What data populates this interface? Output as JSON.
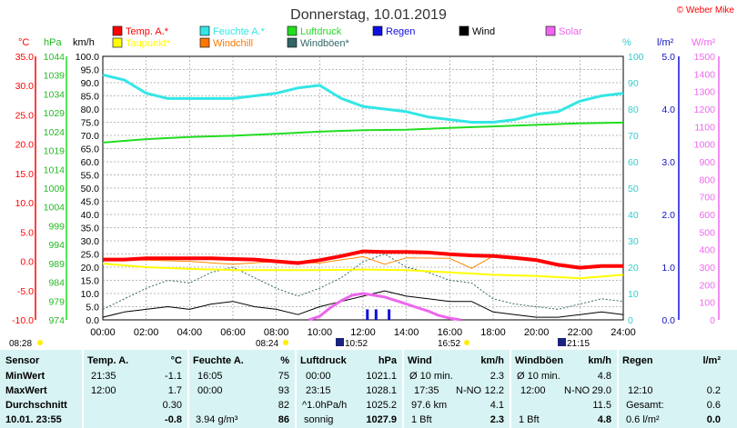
{
  "title": "Donnerstag, 10.01.2019",
  "copyright": "© Weber Mike",
  "legend": [
    {
      "name": "Temp. A.*",
      "color": "#ff0000"
    },
    {
      "name": "Feuchte A.*",
      "color": "#33e6e6"
    },
    {
      "name": "Luftdruck",
      "color": "#22dd22"
    },
    {
      "name": "Regen",
      "color": "#1010e0"
    },
    {
      "name": "Wind",
      "color": "#000000"
    },
    {
      "name": "Solar",
      "color": "#ee66ee"
    },
    {
      "name": "Taupunkt*",
      "color": "#ffff00"
    },
    {
      "name": "Windchill",
      "color": "#ff7700"
    },
    {
      "name": "Windböen*",
      "color": "#336666"
    }
  ],
  "axis_units": {
    "temp": "°C",
    "pressure": "hPa",
    "wind": "km/h",
    "humidity": "%",
    "rain": "l/m²",
    "solar": "W/m²"
  },
  "axis_ticks": {
    "temp": [
      "35.0",
      "30.0",
      "25.0",
      "20.0",
      "15.0",
      "10.0",
      "5.0",
      "0.0",
      "-5.0",
      "-10.0"
    ],
    "pressure": [
      "1044",
      "1039",
      "1034",
      "1029",
      "1024",
      "1019",
      "1014",
      "1009",
      "1004",
      "999",
      "994",
      "989",
      "984",
      "979",
      "974"
    ],
    "wind": [
      "100.0",
      "95.0",
      "90.0",
      "85.0",
      "80.0",
      "75.0",
      "70.0",
      "65.0",
      "60.0",
      "55.0",
      "50.0",
      "45.0",
      "40.0",
      "35.0",
      "30.0",
      "25.0",
      "20.0",
      "15.0",
      "10.0",
      "5.0",
      "0.0"
    ],
    "humidity": [
      "100",
      "90",
      "80",
      "70",
      "60",
      "50",
      "40",
      "30",
      "20",
      "10",
      "0"
    ],
    "rain": [
      "5.0",
      "4.0",
      "3.0",
      "2.0",
      "1.0",
      "0.0"
    ],
    "solar": [
      "1500",
      "1400",
      "1300",
      "1200",
      "1100",
      "1000",
      "900",
      "800",
      "700",
      "600",
      "500",
      "400",
      "300",
      "200",
      "100",
      "0"
    ]
  },
  "time_ticks": [
    "00:00",
    "02:00",
    "04:00",
    "06:00",
    "08:00",
    "10:00",
    "12:00",
    "14:00",
    "16:00",
    "18:00",
    "20:00",
    "22:00",
    "24:00"
  ],
  "events": {
    "sunrise1": "08:28",
    "sunrise2": "08:24",
    "moonrise": "10:52",
    "sunset": "16:52",
    "moonset": "21:15"
  },
  "chart_data": {
    "type": "line",
    "title": "Donnerstag, 10.01.2019",
    "x_unit": "hour",
    "x_range": [
      0,
      24
    ],
    "series": [
      {
        "name": "Temp. A.*",
        "axis": "temp",
        "ylim": [
          -10,
          35
        ],
        "x": [
          0,
          1,
          2,
          3,
          4,
          5,
          6,
          7,
          8,
          9,
          10,
          11,
          12,
          13,
          14,
          15,
          16,
          17,
          18,
          19,
          20,
          21,
          22,
          23,
          24
        ],
        "values": [
          0.3,
          0.3,
          0.5,
          0.5,
          0.5,
          0.5,
          0.4,
          0.3,
          0.0,
          -0.3,
          0.2,
          0.9,
          1.7,
          1.6,
          1.6,
          1.5,
          1.2,
          1.0,
          0.9,
          0.6,
          0.2,
          -0.6,
          -1.1,
          -0.8,
          -0.8
        ]
      },
      {
        "name": "Feuchte A.*",
        "axis": "humidity",
        "ylim": [
          0,
          100
        ],
        "x": [
          0,
          1,
          2,
          3,
          4,
          5,
          6,
          7,
          8,
          9,
          10,
          11,
          12,
          13,
          14,
          15,
          16,
          17,
          18,
          19,
          20,
          21,
          22,
          23,
          24
        ],
        "values": [
          93,
          91,
          86,
          84,
          84,
          84,
          84,
          85,
          86,
          88,
          89,
          84,
          81,
          80,
          79,
          77,
          76,
          75,
          75,
          76,
          78,
          79,
          83,
          85,
          86
        ]
      },
      {
        "name": "Luftdruck",
        "axis": "pressure",
        "ylim": [
          974,
          1044
        ],
        "x": [
          0,
          2,
          4,
          6,
          8,
          10,
          12,
          14,
          16,
          18,
          20,
          22,
          24
        ],
        "values": [
          1021.1,
          1022.0,
          1022.6,
          1022.9,
          1023.4,
          1024.0,
          1024.4,
          1024.5,
          1025.0,
          1025.4,
          1025.8,
          1026.2,
          1026.4
        ]
      },
      {
        "name": "Taupunkt*",
        "axis": "temp",
        "ylim": [
          -10,
          35
        ],
        "x": [
          0,
          2,
          4,
          6,
          8,
          10,
          12,
          14,
          16,
          18,
          20,
          22,
          24
        ],
        "values": [
          -0.4,
          -1.0,
          -1.3,
          -1.5,
          -1.5,
          -1.5,
          -1.4,
          -1.5,
          -1.9,
          -2.3,
          -2.5,
          -2.9,
          -2.3
        ]
      },
      {
        "name": "Windchill",
        "axis": "temp",
        "ylim": [
          -10,
          35
        ],
        "x": [
          0,
          2,
          4,
          6,
          8,
          10,
          12,
          13,
          14,
          16,
          17,
          18,
          20,
          22,
          24
        ],
        "values": [
          0.3,
          0.2,
          0.0,
          -0.5,
          0.0,
          -0.3,
          0.8,
          -0.5,
          0.6,
          0.5,
          -1.2,
          0.9,
          0.2,
          -1.1,
          -0.8
        ]
      },
      {
        "name": "Wind",
        "axis": "wind",
        "ylim": [
          0,
          100
        ],
        "x": [
          0,
          1,
          2,
          3,
          4,
          5,
          6,
          7,
          8,
          9,
          10,
          11,
          12,
          13,
          14,
          15,
          16,
          17,
          18,
          19,
          20,
          21,
          22,
          23,
          24
        ],
        "values": [
          1,
          3,
          4,
          5,
          4,
          6,
          7,
          5,
          4,
          2,
          5,
          7,
          9,
          11,
          9,
          8,
          7,
          7,
          3,
          2,
          1,
          1,
          2,
          3,
          2
        ]
      },
      {
        "name": "Windböen*",
        "axis": "wind",
        "ylim": [
          0,
          100
        ],
        "x": [
          0,
          1,
          2,
          3,
          4,
          5,
          6,
          7,
          8,
          9,
          10,
          11,
          12,
          13,
          14,
          15,
          16,
          17,
          18,
          19,
          20,
          21,
          22,
          23,
          24
        ],
        "values": [
          4,
          8,
          12,
          15,
          14,
          18,
          20,
          16,
          12,
          9,
          12,
          16,
          22,
          25,
          20,
          18,
          15,
          14,
          8,
          6,
          5,
          4,
          6,
          8,
          7
        ]
      },
      {
        "name": "Solar",
        "axis": "solar",
        "ylim": [
          0,
          1500
        ],
        "x": [
          9.5,
          10,
          10.5,
          11,
          11.5,
          12,
          12.5,
          13,
          13.5,
          14,
          14.5,
          15,
          15.5,
          16,
          16.5
        ],
        "values": [
          0,
          20,
          70,
          110,
          140,
          150,
          140,
          130,
          110,
          90,
          70,
          50,
          25,
          10,
          0
        ]
      },
      {
        "name": "Regen",
        "axis": "rain",
        "ylim": [
          0,
          5
        ],
        "x": [
          12.2,
          12.6,
          13.2
        ],
        "values": [
          0.2,
          0.2,
          0.2
        ]
      }
    ]
  },
  "table": {
    "headers": {
      "sensor": "Sensor",
      "temp": "Temp. A.",
      "temp_unit": "°C",
      "hum": "Feuchte A.",
      "hum_unit": "%",
      "press": "Luftdruck",
      "press_unit": "hPa",
      "wind": "Wind",
      "wind_unit": "km/h",
      "gust": "Windböen",
      "gust_unit": "km/h",
      "rain": "Regen",
      "rain_unit": "l/m²"
    },
    "labels": {
      "min": "MinWert",
      "max": "MaxWert",
      "avg": "Durchschnitt",
      "cur": "10.01. 23:55"
    },
    "min": {
      "temp_time": "21:35",
      "temp": "-1.1",
      "hum_time": "16:05",
      "hum": "75",
      "press_time": "00:00",
      "press": "1021.1",
      "wind_label": "Ø 10 min.",
      "wind": "2.3",
      "gust_label": "Ø 10 min.",
      "gust": "4.8"
    },
    "max": {
      "temp_time": "12:00",
      "temp": "1.7",
      "hum_time": "00:00",
      "hum": "93",
      "press_time": "23:15",
      "press": "1028.1",
      "wind_time": "17:35",
      "wind_dir": "N-NO",
      "wind": "12.2",
      "gust_time": "12:00",
      "gust_dir": "N-NO",
      "gust": "29.0",
      "rain_time": "12:10",
      "rain": "0.2"
    },
    "avg": {
      "temp": "0.30",
      "hum": "82",
      "press_label": "^1.0hPa/h",
      "press": "1025.2",
      "wind_dist": "97.6 km",
      "wind": "4.1",
      "gust": "11.5",
      "rain_label": "Gesamt:",
      "rain": "0.6"
    },
    "cur": {
      "temp": "-0.8",
      "hum_abs": "3.94 g/m³",
      "hum": "86",
      "press_label": "sonnig",
      "press": "1027.9",
      "wind_label": "1 Bft",
      "wind": "2.3",
      "gust_label": "1 Bft",
      "gust": "4.8",
      "rain_label": "0.6 l/m²",
      "rain": "0.0"
    }
  }
}
